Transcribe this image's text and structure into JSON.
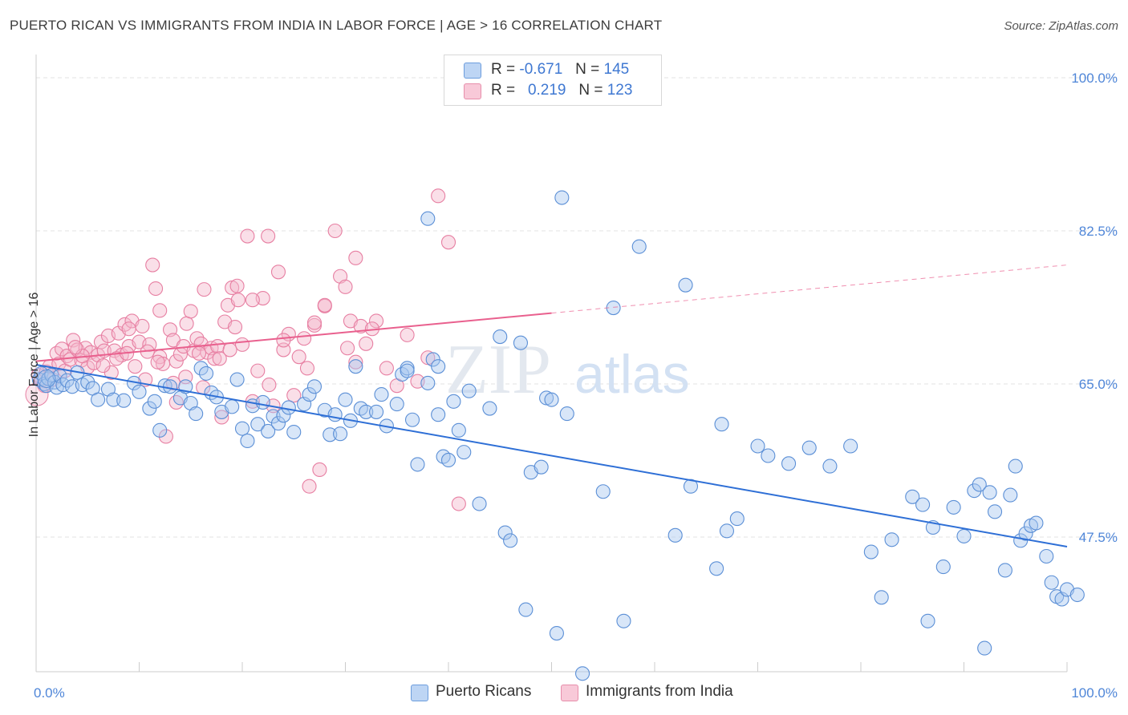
{
  "title": "PUERTO RICAN VS IMMIGRANTS FROM INDIA IN LABOR FORCE | AGE > 16 CORRELATION CHART",
  "source": "Source: ZipAtlas.com",
  "watermark": {
    "zip": "ZIP",
    "atlas": "atlas"
  },
  "legend": {
    "r_label": "R =",
    "n_label": "N =",
    "rows": [
      {
        "r": "-0.671",
        "n": "145",
        "color": "#a9c8ef"
      },
      {
        "r": "0.219",
        "n": "123",
        "color": "#f4b7cb"
      }
    ]
  },
  "bottom_legend": [
    {
      "label": "Puerto Ricans",
      "color": "#a9c8ef"
    },
    {
      "label": "Immigrants from India",
      "color": "#f4b7cb"
    }
  ],
  "chart_data": {
    "type": "scatter",
    "xlabel": "",
    "ylabel": "In Labor Force | Age > 16",
    "xlim": [
      0,
      100
    ],
    "ylim": [
      30,
      100
    ],
    "x_tick_labels": [
      "0.0%",
      "100.0%"
    ],
    "y_ticks": [
      47.5,
      65.0,
      82.5,
      100.0
    ],
    "y_tick_labels": [
      "47.5%",
      "65.0%",
      "82.5%",
      "100.0%"
    ],
    "grid": true,
    "colors": {
      "blue_fill": "#a9c8ef",
      "blue_stroke": "#5b8fd6",
      "blue_line": "#2e6fd6",
      "pink_fill": "#f4b7cb",
      "pink_stroke": "#e77fa2",
      "pink_line": "#e9608e"
    },
    "series": [
      {
        "name": "Puerto Ricans",
        "trend": {
          "x": [
            0,
            100
          ],
          "y": [
            67.2,
            46.4
          ]
        },
        "points": [
          [
            0.3,
            65.5
          ],
          [
            0.5,
            66.2
          ],
          [
            0.8,
            65
          ],
          [
            1,
            64.8
          ],
          [
            1.2,
            65.6
          ],
          [
            1.5,
            66
          ],
          [
            1.8,
            65.2
          ],
          [
            2,
            64.6
          ],
          [
            2.3,
            65.9
          ],
          [
            2.6,
            64.9
          ],
          [
            3,
            65.4
          ],
          [
            3.5,
            64.7
          ],
          [
            4,
            66.3
          ],
          [
            4.5,
            64.9
          ],
          [
            5,
            65.2
          ],
          [
            5.5,
            64.5
          ],
          [
            6,
            63.2
          ],
          [
            7,
            64.4
          ],
          [
            7.5,
            63.2
          ],
          [
            8.5,
            63.1
          ],
          [
            9.5,
            65.1
          ],
          [
            10,
            64.1
          ],
          [
            11,
            62.2
          ],
          [
            11.5,
            63
          ],
          [
            12,
            59.7
          ],
          [
            12.5,
            64.8
          ],
          [
            13,
            64.7
          ],
          [
            14,
            63.4
          ],
          [
            14.5,
            64.7
          ],
          [
            15,
            62.8
          ],
          [
            15.5,
            61.6
          ],
          [
            16,
            66.8
          ],
          [
            16.5,
            66.2
          ],
          [
            17,
            64
          ],
          [
            17.5,
            63.5
          ],
          [
            18,
            61.8
          ],
          [
            19,
            62.4
          ],
          [
            19.5,
            65.5
          ],
          [
            20,
            59.9
          ],
          [
            20.5,
            58.5
          ],
          [
            21,
            62.5
          ],
          [
            21.5,
            60.4
          ],
          [
            22,
            62.9
          ],
          [
            22.5,
            59.6
          ],
          [
            23,
            61.3
          ],
          [
            23.5,
            60.5
          ],
          [
            24,
            61.4
          ],
          [
            24.5,
            62.3
          ],
          [
            25,
            59.5
          ],
          [
            26,
            62.7
          ],
          [
            26.5,
            63.8
          ],
          [
            27,
            64.7
          ],
          [
            28,
            62
          ],
          [
            28.5,
            59.2
          ],
          [
            29,
            61.5
          ],
          [
            29.5,
            59.3
          ],
          [
            30,
            63.2
          ],
          [
            30.5,
            60.8
          ],
          [
            31,
            67
          ],
          [
            31.5,
            62.2
          ],
          [
            32,
            61.8
          ],
          [
            33,
            61.8
          ],
          [
            33.5,
            63.8
          ],
          [
            34,
            60.2
          ],
          [
            35,
            62.7
          ],
          [
            35.5,
            66.1
          ],
          [
            36,
            66.8
          ],
          [
            36.5,
            60.9
          ],
          [
            37,
            55.8
          ],
          [
            38,
            65.1
          ],
          [
            38.5,
            67.8
          ],
          [
            39,
            67
          ],
          [
            39.5,
            56.7
          ],
          [
            40,
            56.3
          ],
          [
            40.5,
            63
          ],
          [
            41,
            59.7
          ],
          [
            41.5,
            57.2
          ],
          [
            42,
            64.2
          ],
          [
            43,
            51.3
          ],
          [
            44,
            62.2
          ],
          [
            45,
            70.4
          ],
          [
            45.5,
            48
          ],
          [
            46,
            47.1
          ],
          [
            47,
            69.7
          ],
          [
            47.5,
            39.2
          ],
          [
            48,
            54.9
          ],
          [
            49,
            55.5
          ],
          [
            49.5,
            63.4
          ],
          [
            50,
            63.2
          ],
          [
            50.5,
            36.5
          ],
          [
            51,
            86.3
          ],
          [
            51.5,
            61.6
          ],
          [
            53,
            31.9
          ],
          [
            55,
            52.7
          ],
          [
            56,
            73.7
          ],
          [
            57,
            37.9
          ],
          [
            58.5,
            80.7
          ],
          [
            62,
            47.7
          ],
          [
            63,
            76.3
          ],
          [
            63.5,
            53.3
          ],
          [
            66,
            43.9
          ],
          [
            66.5,
            60.4
          ],
          [
            67,
            48.2
          ],
          [
            68,
            49.6
          ],
          [
            70,
            57.9
          ],
          [
            71,
            56.8
          ],
          [
            73,
            55.9
          ],
          [
            75,
            57.7
          ],
          [
            77,
            55.6
          ],
          [
            79,
            57.9
          ],
          [
            81,
            45.8
          ],
          [
            82,
            40.6
          ],
          [
            83,
            47.2
          ],
          [
            85,
            52.1
          ],
          [
            86,
            51.2
          ],
          [
            86.5,
            37.9
          ],
          [
            87,
            48.6
          ],
          [
            88,
            44.1
          ],
          [
            89,
            50.9
          ],
          [
            90,
            47.6
          ],
          [
            91,
            52.8
          ],
          [
            91.5,
            53.5
          ],
          [
            92,
            34.8
          ],
          [
            92.5,
            52.6
          ],
          [
            93,
            50.4
          ],
          [
            94,
            43.7
          ],
          [
            94.5,
            52.3
          ],
          [
            95,
            55.6
          ],
          [
            95.5,
            47.1
          ],
          [
            96,
            47.9
          ],
          [
            96.5,
            48.8
          ],
          [
            97,
            49.1
          ],
          [
            98,
            45.3
          ],
          [
            98.5,
            42.3
          ],
          [
            99,
            40.7
          ],
          [
            99.5,
            40.4
          ],
          [
            100,
            41.5
          ],
          [
            101,
            40.9
          ],
          [
            38,
            83.9
          ],
          [
            39,
            61.5
          ],
          [
            36,
            66.5
          ]
        ]
      },
      {
        "name": "Immigrants from India",
        "trend": {
          "x": [
            0,
            50
          ],
          "y": [
            67.6,
            73.1
          ]
        },
        "trend_dashed": {
          "x": [
            50,
            100
          ],
          "y": [
            73.1,
            78.6
          ]
        },
        "points": [
          [
            0.2,
            66
          ],
          [
            0.5,
            65.4
          ],
          [
            0.8,
            64.8
          ],
          [
            1,
            66.4
          ],
          [
            1.3,
            67
          ],
          [
            1.6,
            65.5
          ],
          [
            2,
            68.5
          ],
          [
            2.2,
            67.3
          ],
          [
            2.5,
            69
          ],
          [
            2.8,
            66.5
          ],
          [
            3,
            68.2
          ],
          [
            3.3,
            67.8
          ],
          [
            3.6,
            70
          ],
          [
            4,
            68.9
          ],
          [
            4.4,
            67.7
          ],
          [
            4.8,
            69.1
          ],
          [
            5,
            66.9
          ],
          [
            5.3,
            68.6
          ],
          [
            5.6,
            67.4
          ],
          [
            6,
            68.3
          ],
          [
            6.3,
            69.8
          ],
          [
            6.6,
            68.8
          ],
          [
            7,
            70.5
          ],
          [
            7.3,
            66.3
          ],
          [
            7.6,
            68.8
          ],
          [
            8,
            70.8
          ],
          [
            8.3,
            68.3
          ],
          [
            8.6,
            71.8
          ],
          [
            9,
            69.3
          ],
          [
            9.3,
            72.2
          ],
          [
            9.6,
            67
          ],
          [
            10,
            69.8
          ],
          [
            10.3,
            71.6
          ],
          [
            10.6,
            65.5
          ],
          [
            11,
            69.5
          ],
          [
            11.3,
            78.6
          ],
          [
            11.6,
            75.9
          ],
          [
            12,
            68.1
          ],
          [
            12.3,
            67.3
          ],
          [
            12.6,
            59
          ],
          [
            13,
            71.2
          ],
          [
            13.3,
            70
          ],
          [
            13.6,
            67.6
          ],
          [
            14,
            68.4
          ],
          [
            14.3,
            69.3
          ],
          [
            14.6,
            71.9
          ],
          [
            15,
            73.3
          ],
          [
            15.3,
            68.8
          ],
          [
            15.6,
            70.2
          ],
          [
            16,
            69.6
          ],
          [
            16.3,
            75.8
          ],
          [
            16.6,
            68.6
          ],
          [
            17,
            69.1
          ],
          [
            17.3,
            67.9
          ],
          [
            17.6,
            69.3
          ],
          [
            18,
            61.2
          ],
          [
            18.3,
            72.1
          ],
          [
            18.6,
            74
          ],
          [
            19,
            76
          ],
          [
            19.3,
            71.5
          ],
          [
            19.6,
            74.6
          ],
          [
            20,
            69.5
          ],
          [
            21,
            63
          ],
          [
            21.5,
            66.5
          ],
          [
            22,
            74.8
          ],
          [
            22.5,
            81.9
          ],
          [
            23,
            62.5
          ],
          [
            23.5,
            77.8
          ],
          [
            24,
            68.9
          ],
          [
            24.5,
            70.7
          ],
          [
            25,
            63.7
          ],
          [
            25.5,
            68.1
          ],
          [
            26,
            70.2
          ],
          [
            26.5,
            53.3
          ],
          [
            27,
            71.7
          ],
          [
            27.5,
            55.2
          ],
          [
            28,
            73.9
          ],
          [
            29,
            82.5
          ],
          [
            29.5,
            77.3
          ],
          [
            30,
            76.1
          ],
          [
            30.5,
            72.2
          ],
          [
            31,
            79.4
          ],
          [
            31.5,
            71.6
          ],
          [
            32,
            69.6
          ],
          [
            33,
            72.2
          ],
          [
            34,
            66.8
          ],
          [
            35,
            64.8
          ],
          [
            36,
            70.6
          ],
          [
            37,
            65.3
          ],
          [
            38,
            68
          ],
          [
            39,
            86.5
          ],
          [
            40,
            81.2
          ],
          [
            41,
            51.3
          ],
          [
            20.5,
            81.9
          ],
          [
            21,
            74.6
          ],
          [
            16.2,
            64.6
          ],
          [
            12,
            73.4
          ],
          [
            9,
            71.3
          ],
          [
            24,
            70
          ],
          [
            27,
            72
          ],
          [
            31,
            67.5
          ],
          [
            14.5,
            65.8
          ],
          [
            6.5,
            67.1
          ],
          [
            7.8,
            67.9
          ],
          [
            19.5,
            76.2
          ],
          [
            10.8,
            68.7
          ],
          [
            4.5,
            68.2
          ],
          [
            3.8,
            69.2
          ],
          [
            15.8,
            68.5
          ],
          [
            8.8,
            68.5
          ],
          [
            11.8,
            67.5
          ],
          [
            13.6,
            62.9
          ],
          [
            17.8,
            67.9
          ],
          [
            22.6,
            64.9
          ],
          [
            28,
            74
          ],
          [
            30.2,
            69.1
          ],
          [
            32.6,
            71.3
          ],
          [
            18.8,
            68.9
          ],
          [
            26.3,
            66.8
          ],
          [
            13.3,
            65.1
          ]
        ]
      }
    ]
  }
}
